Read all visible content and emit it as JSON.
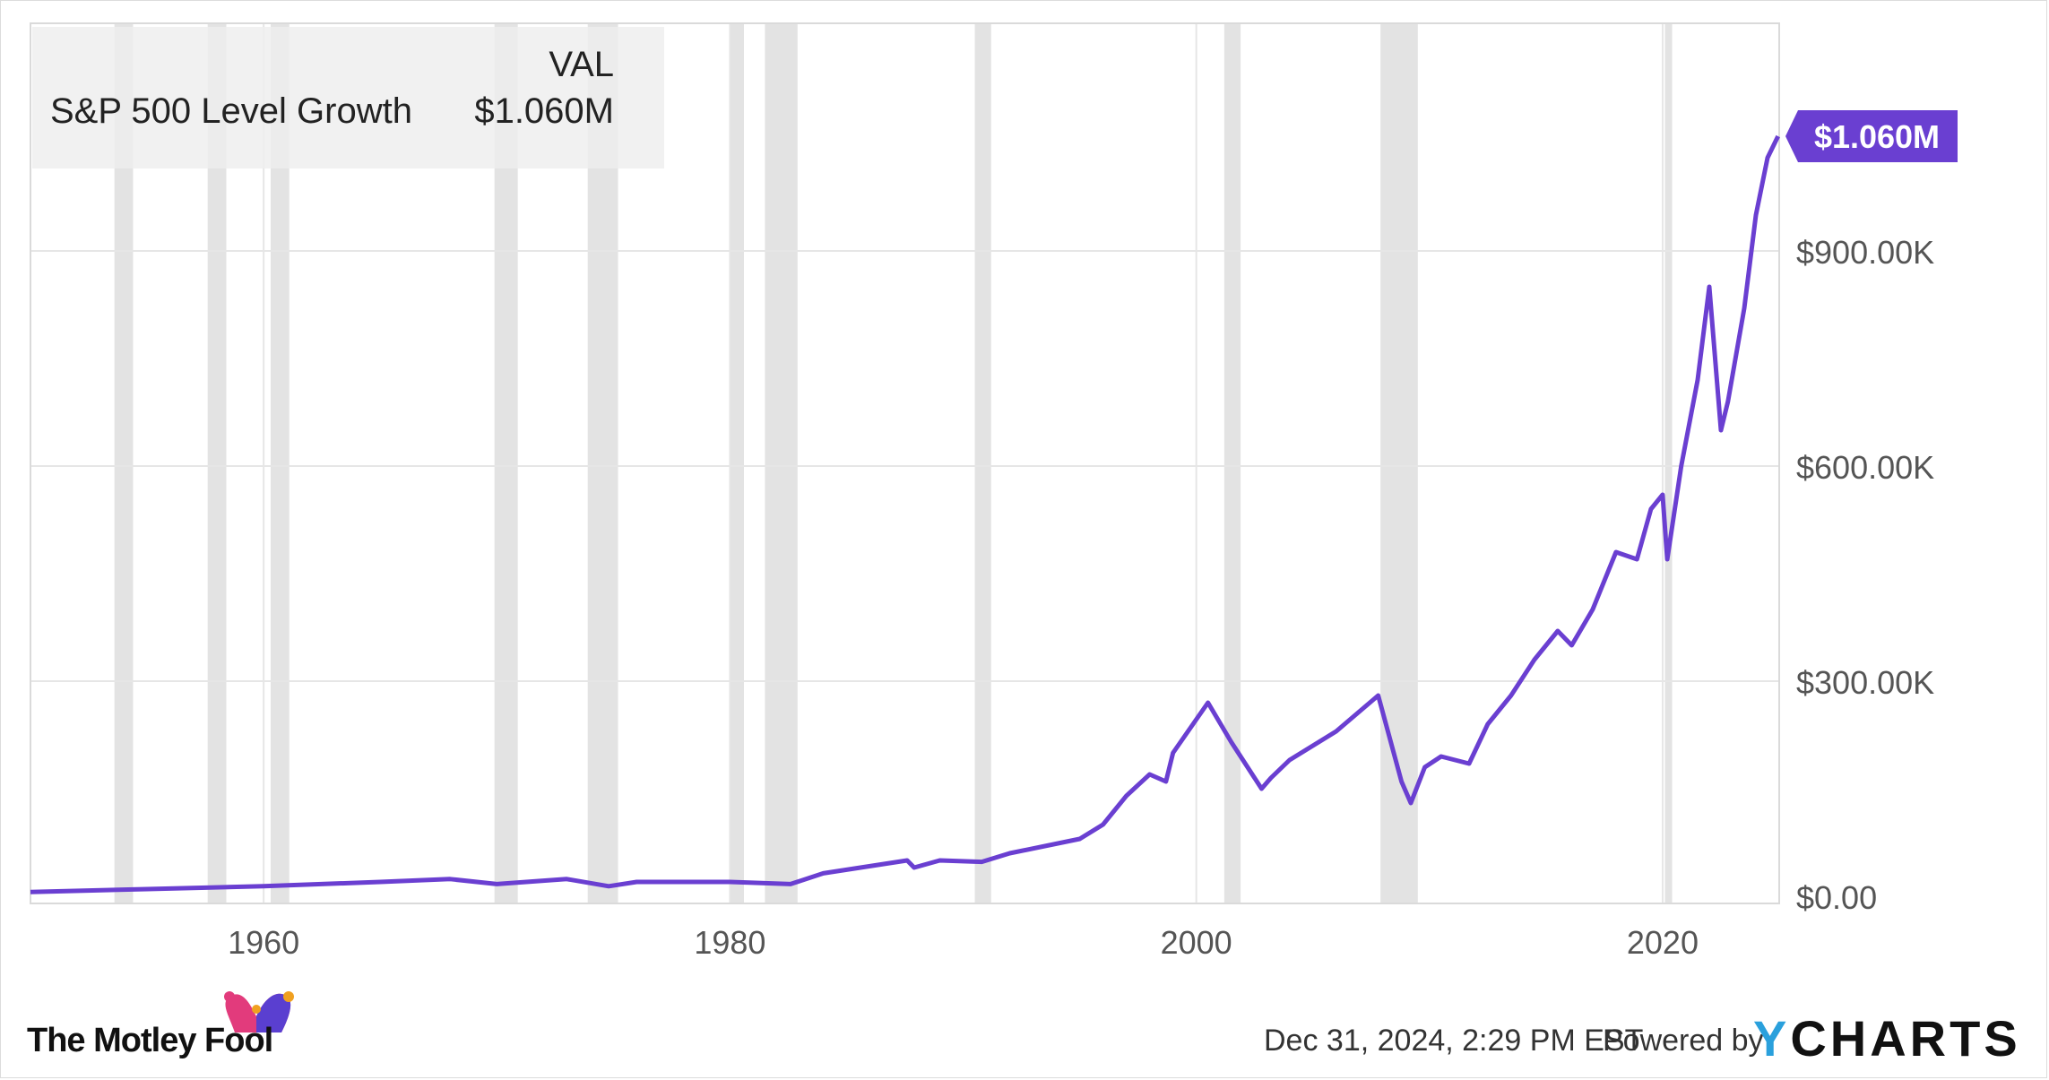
{
  "chart_data": {
    "type": "line",
    "legend": {
      "header": "VAL",
      "series_name": "S&P 500 Level Growth",
      "series_value": "$1.060M"
    },
    "end_label": "$1.060M",
    "xlim": [
      1950,
      2025
    ],
    "ylim": [
      0,
      1200000
    ],
    "x_ticks": [
      {
        "value": 1960,
        "label": "1960"
      },
      {
        "value": 1980,
        "label": "1980"
      },
      {
        "value": 2000,
        "label": "2000"
      },
      {
        "value": 2020,
        "label": "2020"
      }
    ],
    "y_ticks": [
      {
        "value": 0,
        "label": "$0.00"
      },
      {
        "value": 300000,
        "label": "$300.00K"
      },
      {
        "value": 600000,
        "label": "$600.00K"
      },
      {
        "value": 900000,
        "label": "$900.00K"
      }
    ],
    "recessions": [
      [
        1953.6,
        1954.4
      ],
      [
        1957.6,
        1958.4
      ],
      [
        1960.3,
        1961.1
      ],
      [
        1969.9,
        1970.9
      ],
      [
        1973.9,
        1975.2
      ],
      [
        1980.0,
        1980.6
      ],
      [
        1981.5,
        1982.9
      ],
      [
        1990.5,
        1991.2
      ],
      [
        2001.2,
        2001.9
      ],
      [
        2007.9,
        2009.5
      ],
      [
        2020.1,
        2020.4
      ]
    ],
    "series": [
      {
        "color": "#6a3fd1",
        "x": [
          1950,
          1955,
          1960,
          1965,
          1968,
          1970,
          1973,
          1974.8,
          1976,
          1980,
          1982.6,
          1984,
          1987.6,
          1987.9,
          1989,
          1990.8,
          1992,
          1995,
          1996,
          1997,
          1998,
          1998.7,
          1999,
          2000.5,
          2001.5,
          2002.8,
          2003.2,
          2004,
          2005,
          2006,
          2007.8,
          2008.3,
          2008.8,
          2009.2,
          2009.8,
          2010.5,
          2011.7,
          2012.5,
          2013.5,
          2014.5,
          2015.5,
          2016.1,
          2017,
          2018,
          2018.9,
          2019.5,
          2020.0,
          2020.2,
          2020.8,
          2021.5,
          2022.0,
          2022.5,
          2022.8,
          2023.5,
          2024.0,
          2024.5,
          2024.95
        ],
        "values": [
          6000,
          10000,
          14000,
          20000,
          24000,
          17000,
          24000,
          14000,
          20000,
          20000,
          17000,
          32000,
          50000,
          40000,
          50000,
          48000,
          60000,
          80000,
          100000,
          140000,
          170000,
          160000,
          200000,
          270000,
          215000,
          150000,
          165000,
          190000,
          210000,
          230000,
          280000,
          220000,
          160000,
          130000,
          180000,
          195000,
          185000,
          240000,
          280000,
          330000,
          370000,
          350000,
          400000,
          480000,
          470000,
          540000,
          560000,
          470000,
          600000,
          720000,
          850000,
          650000,
          690000,
          820000,
          950000,
          1030000,
          1060000
        ]
      }
    ]
  },
  "footer": {
    "date": "Dec 31, 2024, 2:29 PM EST",
    "powered": "Powered by",
    "brand_y": "Y",
    "brand_rest": "CHARTS",
    "fool": "The Motley Fool"
  }
}
